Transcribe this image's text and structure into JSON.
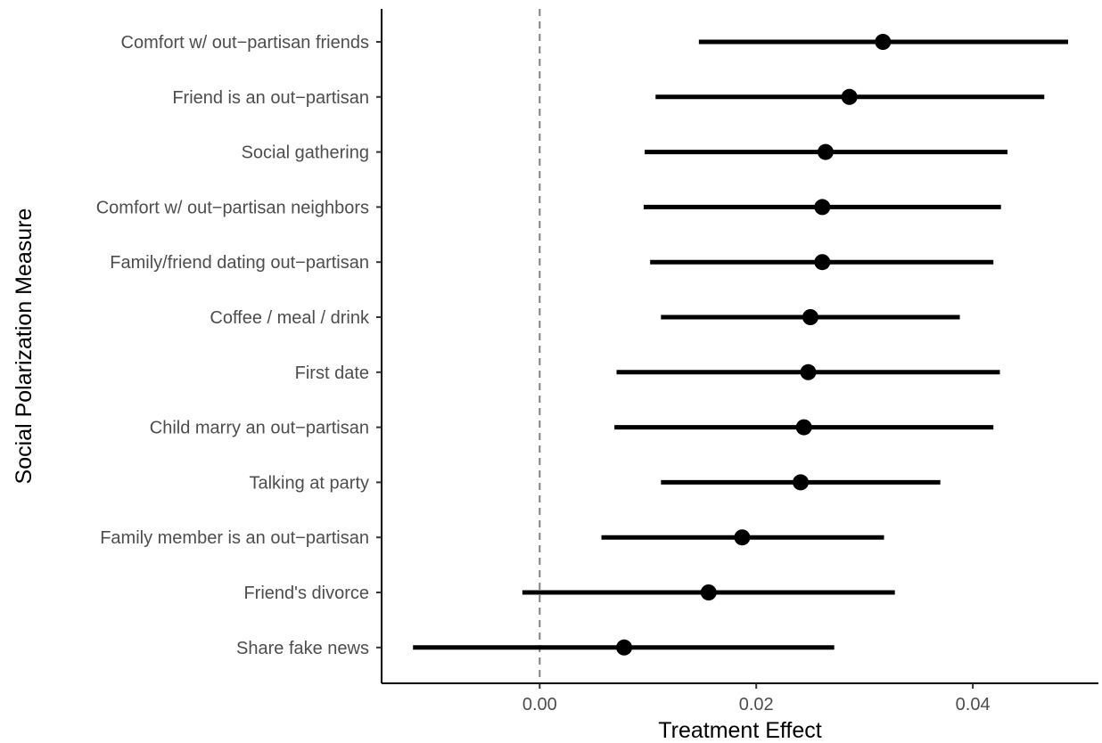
{
  "chart_data": {
    "type": "forest",
    "xlabel": "Treatment Effect",
    "ylabel": "Social Polarization Measure",
    "xlim": [
      -0.0146,
      0.0516
    ],
    "x_ticks": [
      0.0,
      0.02,
      0.04
    ],
    "x_tick_labels": [
      "0.00",
      "0.02",
      "0.04"
    ],
    "reference_line": 0.0,
    "grid": false,
    "items": [
      {
        "label": "Comfort w/ out−partisan friends",
        "estimate": 0.0317,
        "lower": 0.0147,
        "upper": 0.0488
      },
      {
        "label": "Friend is an out−partisan",
        "estimate": 0.0286,
        "lower": 0.0107,
        "upper": 0.0466
      },
      {
        "label": "Social gathering",
        "estimate": 0.0264,
        "lower": 0.0097,
        "upper": 0.0432
      },
      {
        "label": "Comfort w/ out−partisan neighbors",
        "estimate": 0.0261,
        "lower": 0.0096,
        "upper": 0.0426
      },
      {
        "label": "Family/friend dating out−partisan",
        "estimate": 0.0261,
        "lower": 0.0102,
        "upper": 0.0419
      },
      {
        "label": "Coffee / meal / drink",
        "estimate": 0.025,
        "lower": 0.0112,
        "upper": 0.0388
      },
      {
        "label": "First date",
        "estimate": 0.0248,
        "lower": 0.0071,
        "upper": 0.0425
      },
      {
        "label": "Child marry an out−partisan",
        "estimate": 0.0244,
        "lower": 0.0069,
        "upper": 0.0419
      },
      {
        "label": "Talking at party",
        "estimate": 0.0241,
        "lower": 0.0112,
        "upper": 0.037
      },
      {
        "label": "Family member is an out−partisan",
        "estimate": 0.0187,
        "lower": 0.0057,
        "upper": 0.0318
      },
      {
        "label": "Friend's divorce",
        "estimate": 0.0156,
        "lower": -0.0016,
        "upper": 0.0328
      },
      {
        "label": "Share fake news",
        "estimate": 0.0078,
        "lower": -0.0117,
        "upper": 0.0272
      }
    ]
  }
}
